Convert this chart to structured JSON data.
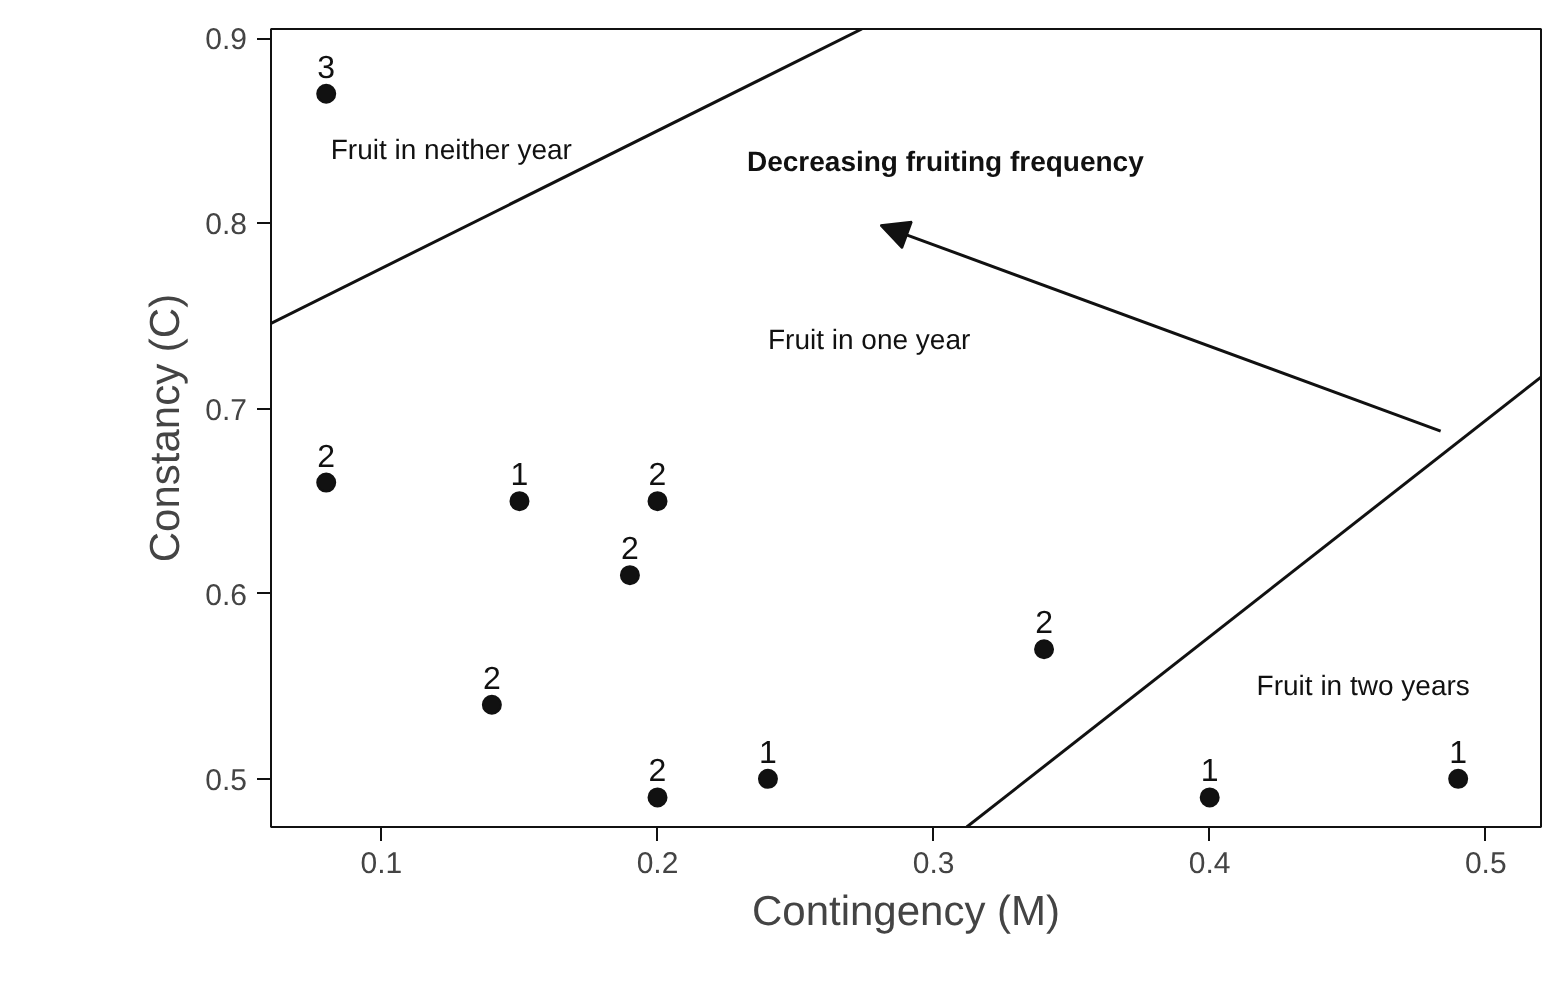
{
  "chart_data": {
    "type": "scatter",
    "xlabel": "Contingency (M)",
    "ylabel": "Constancy (C)",
    "xlim": [
      0.06,
      0.52
    ],
    "ylim": [
      0.474,
      0.905
    ],
    "xticks": [
      0.1,
      0.2,
      0.3,
      0.4,
      0.5
    ],
    "yticks": [
      0.5,
      0.6,
      0.7,
      0.8,
      0.9
    ],
    "grid": false,
    "series": [
      {
        "color": "#111111",
        "marker": "circle",
        "x": [
          0.08,
          0.08,
          0.15,
          0.2,
          0.19,
          0.14,
          0.2,
          0.24,
          0.34,
          0.4,
          0.49
        ],
        "values": [
          0.87,
          0.66,
          0.65,
          0.65,
          0.61,
          0.54,
          0.49,
          0.5,
          0.57,
          0.49,
          0.5
        ]
      },
      {
        "type": "line",
        "color": "#111111",
        "marker": "none",
        "x": [
          0.06,
          0.274
        ],
        "values": [
          0.746,
          0.905
        ]
      },
      {
        "type": "line",
        "color": "#111111",
        "marker": "none",
        "x": [
          0.312,
          0.52
        ],
        "values": [
          0.474,
          0.717
        ]
      }
    ],
    "annotations": [
      "Fruit in neither year",
      "Decreasing fruiting frequency",
      "Fruit in one year",
      "Fruit in two years",
      {
        "text": "3",
        "x": 0.08,
        "y": 0.87
      },
      {
        "text": "2",
        "x": 0.08,
        "y": 0.66
      },
      {
        "text": "1",
        "x": 0.15,
        "y": 0.65
      },
      {
        "text": "2",
        "x": 0.2,
        "y": 0.65
      },
      {
        "text": "2",
        "x": 0.19,
        "y": 0.61
      },
      {
        "text": "2",
        "x": 0.14,
        "y": 0.54
      },
      {
        "text": "2",
        "x": 0.2,
        "y": 0.49
      },
      {
        "text": "1",
        "x": 0.24,
        "y": 0.5
      },
      {
        "text": "2",
        "x": 0.34,
        "y": 0.57
      },
      {
        "text": "1",
        "x": 0.4,
        "y": 0.49
      },
      {
        "text": "1",
        "x": 0.49,
        "y": 0.5
      }
    ]
  }
}
